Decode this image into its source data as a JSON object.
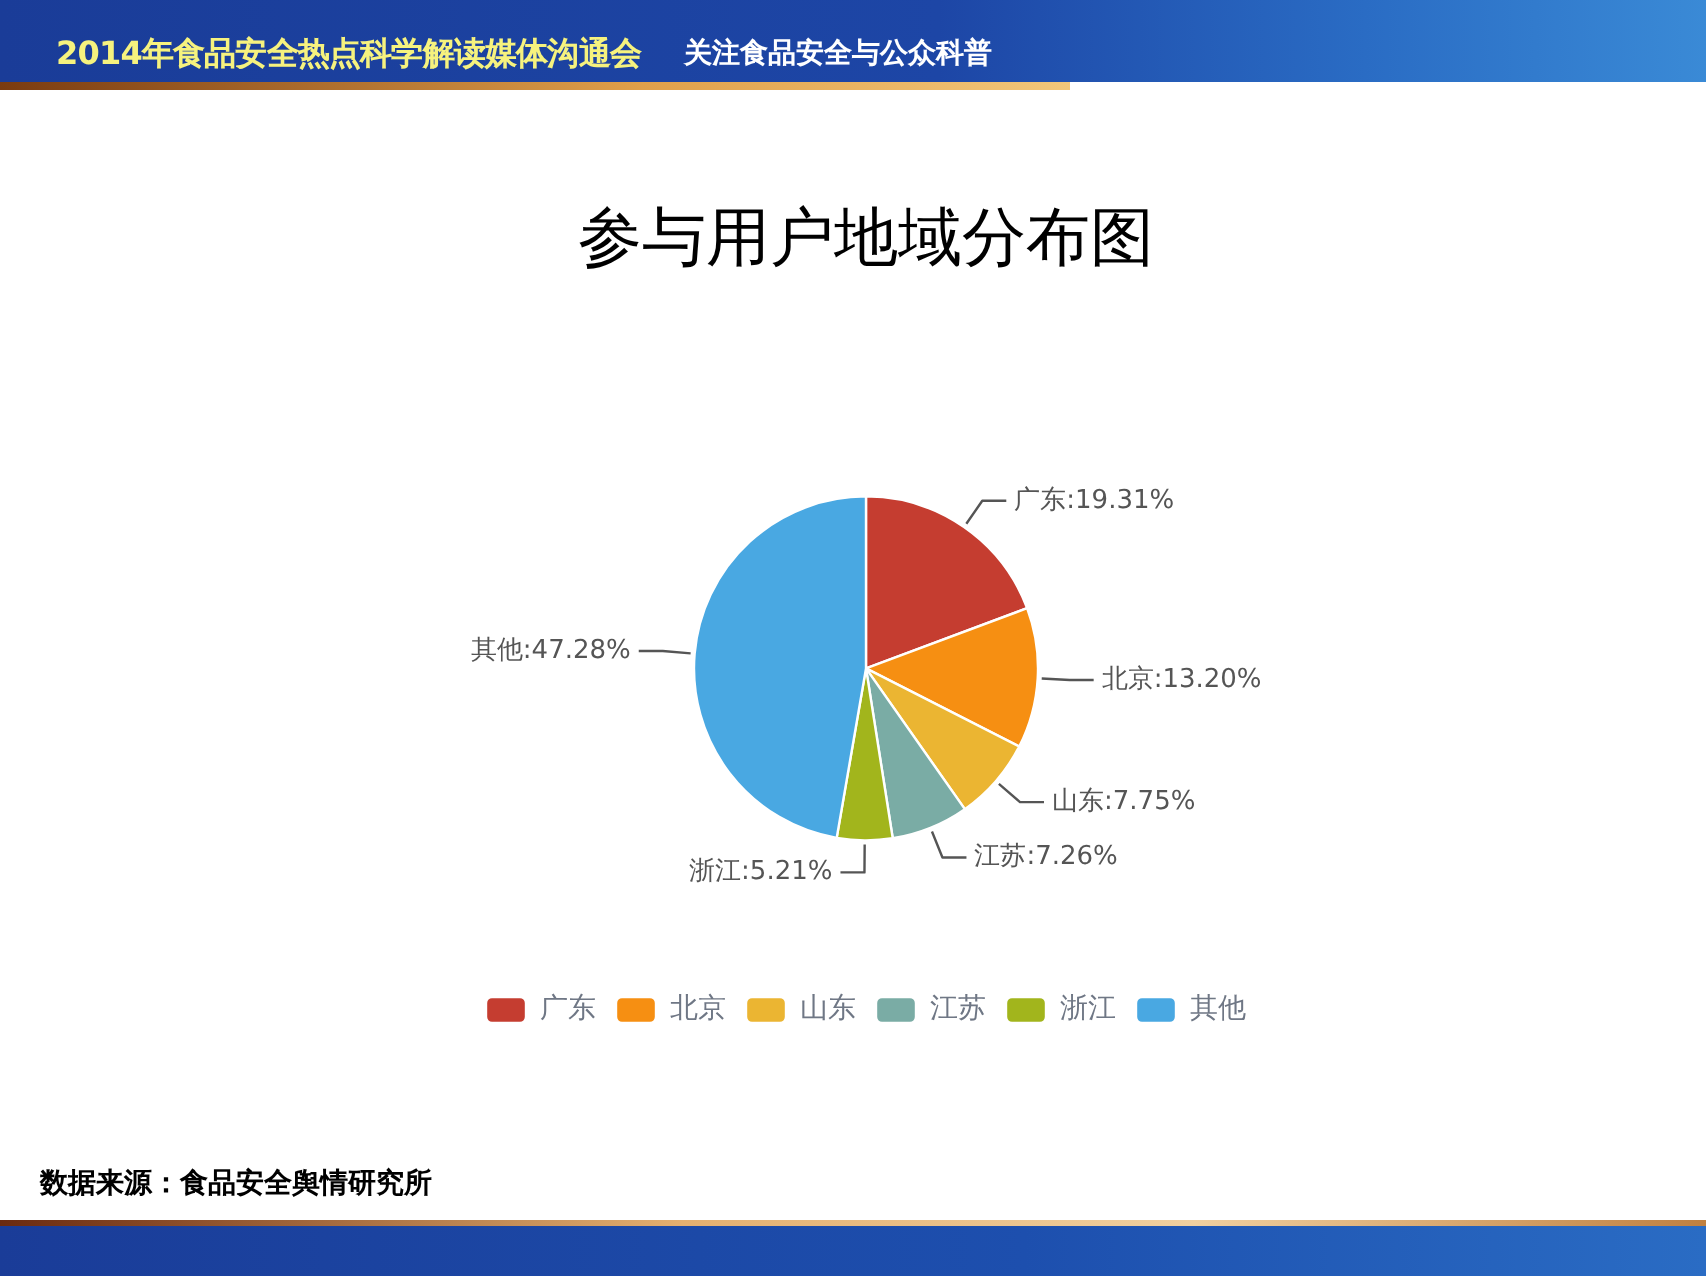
{
  "chart_data": {
    "type": "pie",
    "title": "参与用户地域分布图",
    "categories": [
      "广东",
      "北京",
      "山东",
      "江苏",
      "浙江",
      "其他"
    ],
    "values": [
      19.31,
      13.2,
      7.75,
      7.26,
      5.21,
      47.28
    ],
    "colors": [
      "#c53d30",
      "#f68f12",
      "#ebb532",
      "#7aaca5",
      "#a2b51c",
      "#49a8e2"
    ],
    "value_labels": [
      "广东:19.31%",
      "北京:13.20%",
      "山东:7.75%",
      "江苏:7.26%",
      "浙江:5.21%",
      "其他:47.28%"
    ],
    "legend": "bottom",
    "annotations": [
      "2014年食品安全热点科学解读媒体沟通会",
      "关注食品安全与公众科普",
      "数据来源：食品安全舆情研究所"
    ]
  }
}
